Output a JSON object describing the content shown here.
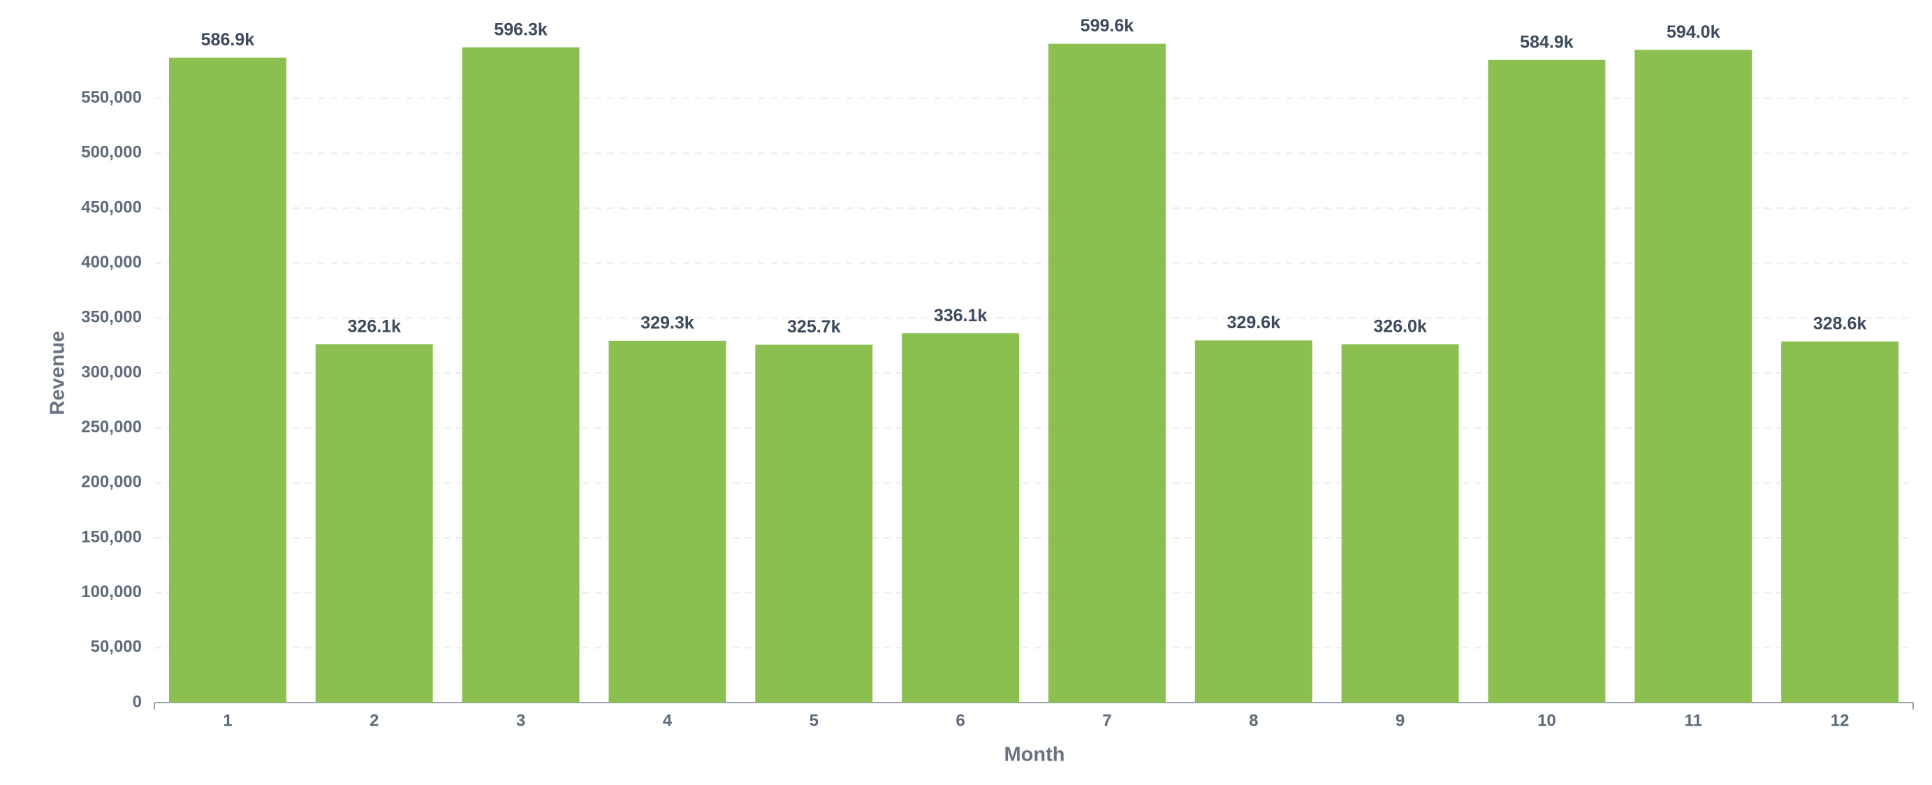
{
  "chart_data": {
    "type": "bar",
    "x_label": "Month",
    "y_label": "Revenue",
    "categories": [
      "1",
      "2",
      "3",
      "4",
      "5",
      "6",
      "7",
      "8",
      "9",
      "10",
      "11",
      "12"
    ],
    "values": [
      586900,
      326100,
      596300,
      329300,
      325700,
      336100,
      599600,
      329600,
      326000,
      584900,
      594000,
      328600
    ],
    "value_labels": [
      "586.9k",
      "326.1k",
      "596.3k",
      "329.3k",
      "325.7k",
      "336.1k",
      "599.6k",
      "329.6k",
      "326.0k",
      "584.9k",
      "594.0k",
      "328.6k"
    ],
    "color": "#8bbf4f",
    "ylim": [
      0,
      600000
    ],
    "yticks": [
      0,
      {
        "value": 50000,
        "label": "50,000"
      },
      {
        "value": 100000,
        "label": "100,000"
      },
      {
        "value": 150000,
        "label": "150,000"
      },
      {
        "value": 200000,
        "label": "200,000"
      },
      {
        "value": 250000,
        "label": "250,000"
      },
      {
        "value": 300000,
        "label": "300,000"
      },
      {
        "value": 350000,
        "label": "350,000"
      },
      {
        "value": 400000,
        "label": "400,000"
      },
      {
        "value": 450000,
        "label": "450,000"
      },
      {
        "value": 500000,
        "label": "500,000"
      },
      {
        "value": 550000,
        "label": "550,000"
      }
    ],
    "grid": true
  }
}
